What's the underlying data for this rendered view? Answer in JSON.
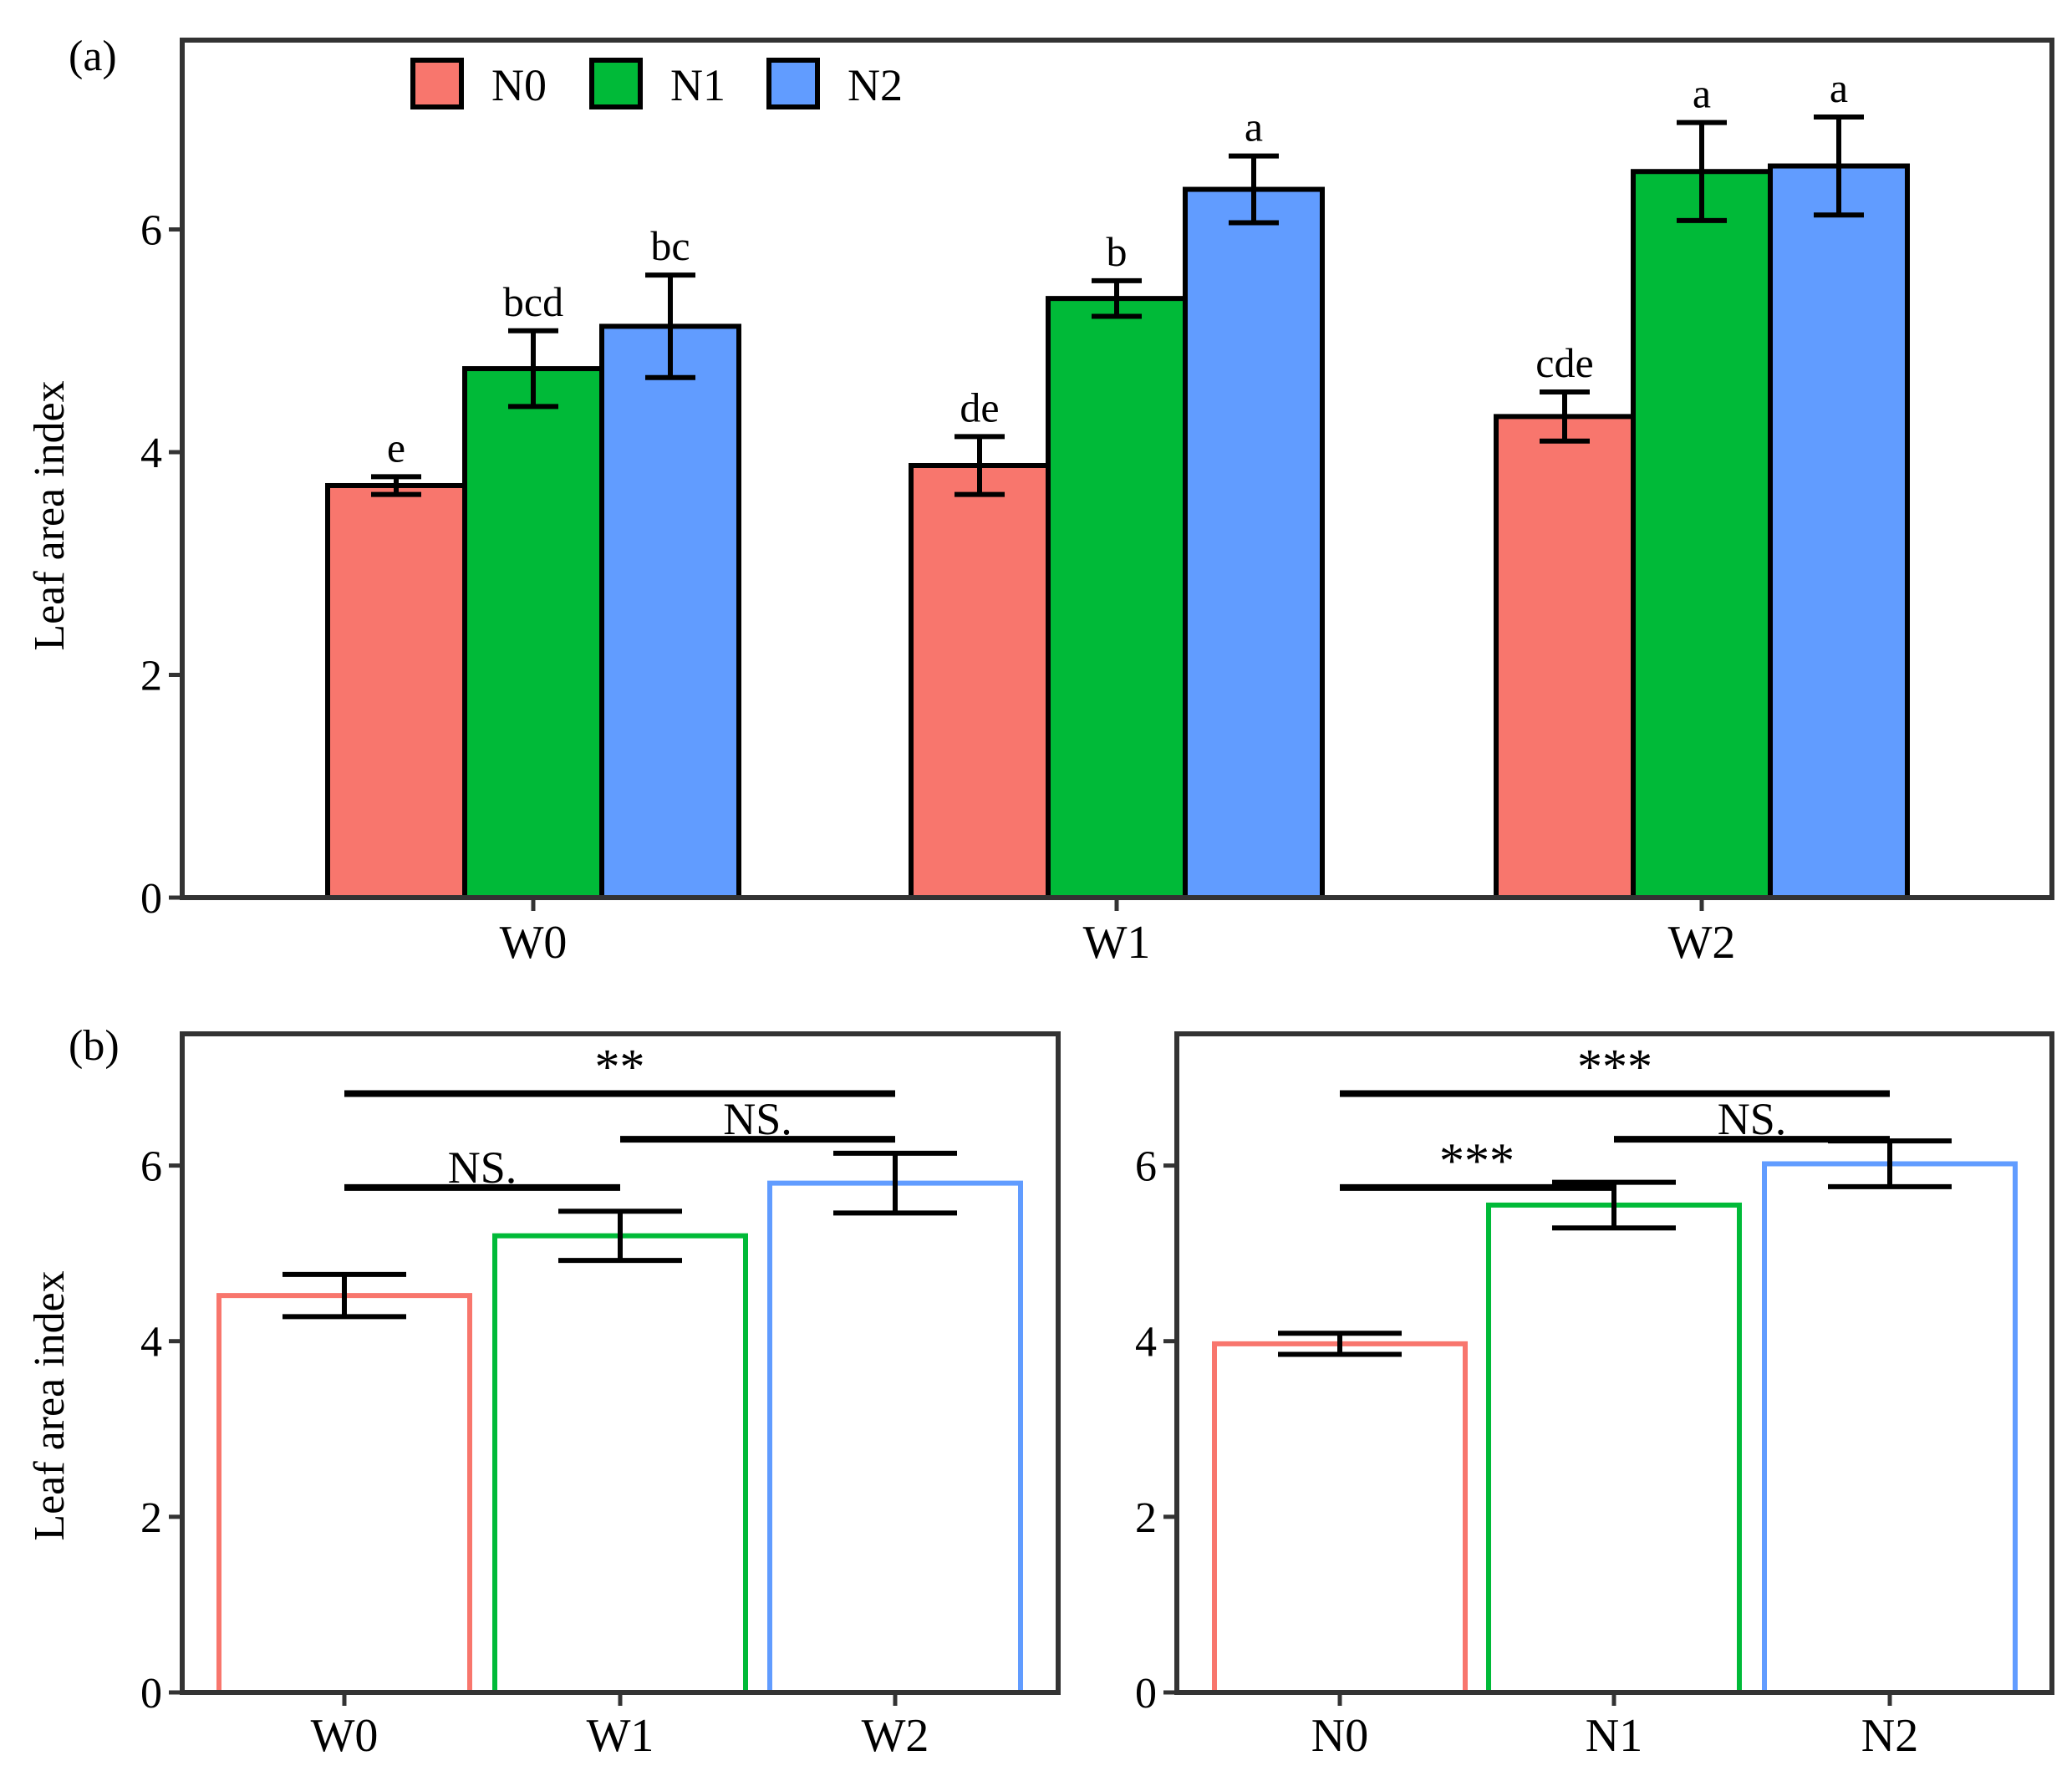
{
  "chart_data": [
    {
      "panel_label": "(a)",
      "type": "bar",
      "categories": [
        "W0",
        "W1",
        "W2"
      ],
      "series": [
        {
          "name": "N0",
          "color": "#F8766D",
          "values": [
            3.7,
            3.88,
            4.32
          ],
          "errors": [
            0.08,
            0.26,
            0.22
          ],
          "letters": [
            "e",
            "de",
            "cde"
          ]
        },
        {
          "name": "N1",
          "color": "#00BA38",
          "values": [
            4.75,
            5.38,
            6.52
          ],
          "errors": [
            0.34,
            0.16,
            0.44
          ],
          "letters": [
            "bcd",
            "b",
            "a"
          ]
        },
        {
          "name": "N2",
          "color": "#619CFF",
          "values": [
            5.13,
            6.36,
            6.57
          ],
          "errors": [
            0.46,
            0.3,
            0.44
          ],
          "letters": [
            "bc",
            "a",
            "a"
          ]
        }
      ],
      "ylabel": "Leaf area index",
      "yticks": [
        "0",
        "2",
        "4",
        "6"
      ],
      "ylim": [
        0,
        7.7
      ],
      "legend": "top-left"
    },
    {
      "panel_label": "(b)",
      "type": "bar",
      "categories": [
        "W0",
        "W1",
        "W2"
      ],
      "colors": [
        "#F8766D",
        "#00BA38",
        "#619CFF"
      ],
      "values": [
        4.52,
        5.2,
        5.8
      ],
      "errors": [
        0.24,
        0.28,
        0.34
      ],
      "ylabel": "Leaf area index",
      "yticks": [
        "0",
        "2",
        "4",
        "6"
      ],
      "ylim": [
        0,
        7.5
      ],
      "comparisons": [
        {
          "from": 0,
          "to": 1,
          "label": "NS.",
          "y": 5.75
        },
        {
          "from": 1,
          "to": 2,
          "label": "NS.",
          "y": 6.3
        },
        {
          "from": 0,
          "to": 2,
          "label": "**",
          "y": 6.82
        }
      ]
    },
    {
      "type": "bar",
      "categories": [
        "N0",
        "N1",
        "N2"
      ],
      "colors": [
        "#F8766D",
        "#00BA38",
        "#619CFF"
      ],
      "values": [
        3.97,
        5.55,
        6.02
      ],
      "errors": [
        0.12,
        0.26,
        0.26
      ],
      "yticks": [
        "0",
        "2",
        "4",
        "6"
      ],
      "ylim": [
        0,
        7.5
      ],
      "comparisons": [
        {
          "from": 0,
          "to": 1,
          "label": "***",
          "y": 5.75
        },
        {
          "from": 1,
          "to": 2,
          "label": "NS.",
          "y": 6.3
        },
        {
          "from": 0,
          "to": 2,
          "label": "***",
          "y": 6.82
        }
      ]
    }
  ]
}
